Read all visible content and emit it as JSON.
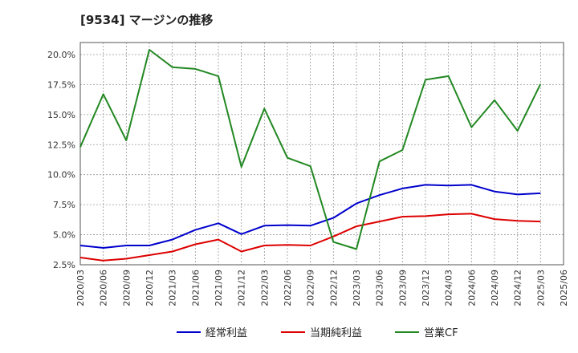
{
  "chart_data": {
    "type": "line",
    "title": "[9534]  マージンの推移",
    "x": [
      "2020/03",
      "2020/06",
      "2020/09",
      "2020/12",
      "2021/03",
      "2021/06",
      "2021/09",
      "2021/12",
      "2022/03",
      "2022/06",
      "2022/09",
      "2022/12",
      "2023/03",
      "2023/06",
      "2023/09",
      "2023/12",
      "2024/03",
      "2024/06",
      "2024/09",
      "2024/12",
      "2025/03",
      "2025/06"
    ],
    "ylim": [
      2.5,
      21.0
    ],
    "yticks": [
      2.5,
      5.0,
      7.5,
      10.0,
      12.5,
      15.0,
      17.5,
      20.0
    ],
    "ytick_labels": [
      "2.5%",
      "5.0%",
      "7.5%",
      "10.0%",
      "12.5%",
      "15.0%",
      "17.5%",
      "20.0%"
    ],
    "grid": true,
    "legend_position": "bottom",
    "series": [
      {
        "name": "経常利益",
        "color": "#0000cc",
        "values": [
          4.1,
          3.9,
          4.1,
          4.1,
          4.6,
          5.4,
          5.95,
          5.05,
          5.75,
          5.8,
          5.75,
          6.4,
          7.6,
          8.3,
          8.85,
          9.15,
          9.1,
          9.15,
          8.6,
          8.35,
          8.45,
          null
        ]
      },
      {
        "name": "当期純利益",
        "color": "#dd0000",
        "values": [
          3.1,
          2.85,
          3.0,
          3.3,
          3.6,
          4.2,
          4.6,
          3.6,
          4.1,
          4.15,
          4.1,
          4.85,
          5.7,
          6.1,
          6.5,
          6.55,
          6.7,
          6.75,
          6.3,
          6.15,
          6.1,
          null
        ]
      },
      {
        "name": "営業CF",
        "color": "#228822",
        "values": [
          12.3,
          16.7,
          12.85,
          20.4,
          18.95,
          18.8,
          18.2,
          10.65,
          15.5,
          11.4,
          10.7,
          4.4,
          3.8,
          11.1,
          12.05,
          17.9,
          18.2,
          13.95,
          16.2,
          13.65,
          17.55,
          null
        ]
      }
    ]
  }
}
